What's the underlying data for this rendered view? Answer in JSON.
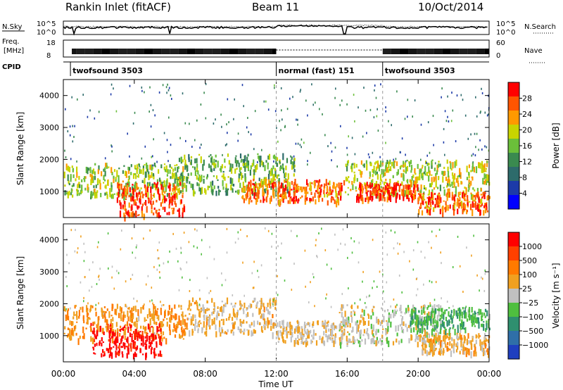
{
  "header": {
    "station": "Rankin Inlet (fitACF)",
    "beam": "Beam 11",
    "date": "10/Oct/2014"
  },
  "summary": {
    "nsky_label": "N.Sky",
    "nsky_ticks": [
      "10^5",
      "10^0"
    ],
    "nsearch_label": "N.Search",
    "nsearch_ticks": [
      "10^5",
      "10^0"
    ],
    "freq_label": "Freq.",
    "freq_unit": "[MHz]",
    "freq_ticks": [
      "18",
      "8"
    ],
    "nave_label": "Nave",
    "nave_ticks": [
      "60",
      "0"
    ],
    "cpid_label": "CPID",
    "cpid_segments": [
      {
        "label": "twofsound 3503",
        "start_hour": 0.4
      },
      {
        "label": "normal (fast) 151",
        "start_hour": 12.0
      },
      {
        "label": "twofsound 3503",
        "start_hour": 18.0
      }
    ]
  },
  "chart_data": [
    {
      "type": "heatmap",
      "panel": "power",
      "ylabel": "Slant Range [km]",
      "xlabel": "",
      "xlim_hours": [
        0,
        24
      ],
      "ylim_km": [
        180,
        4500
      ],
      "colorbar": {
        "label": "Power [dB]",
        "ticks": [
          "28",
          "24",
          "20",
          "16",
          "12",
          "8",
          "4"
        ],
        "range": [
          0,
          30
        ],
        "colors": [
          "#0000ff",
          "#1c3aa8",
          "#2d6b6b",
          "#3a8a4f",
          "#6bbf3a",
          "#c8d400",
          "#ff9900",
          "#ff5500",
          "#ff0000"
        ]
      },
      "bands": [
        {
          "t0": 0.0,
          "t1": 6.8,
          "r0": 900,
          "r1": 1900,
          "level": 16
        },
        {
          "t0": 3.0,
          "t1": 6.8,
          "r0": 250,
          "r1": 1300,
          "level": 26
        },
        {
          "t0": 6.5,
          "t1": 13.0,
          "r0": 1000,
          "r1": 2200,
          "level": 14
        },
        {
          "t0": 10.0,
          "t1": 15.8,
          "r0": 700,
          "r1": 1400,
          "level": 24
        },
        {
          "t0": 15.8,
          "t1": 24.0,
          "r0": 900,
          "r1": 2000,
          "level": 18
        },
        {
          "t0": 16.5,
          "t1": 20.0,
          "r0": 800,
          "r1": 1300,
          "level": 27
        },
        {
          "t0": 20.0,
          "t1": 24.0,
          "r0": 400,
          "r1": 1000,
          "level": 24
        }
      ]
    },
    {
      "type": "heatmap",
      "panel": "velocity",
      "ylabel": "Slant Range [km]",
      "xlabel": "Time UT",
      "xlim_hours": [
        0,
        24
      ],
      "ylim_km": [
        180,
        4500
      ],
      "xticks": [
        "00:00",
        "04:00",
        "08:00",
        "12:00",
        "16:00",
        "20:00",
        "00:00"
      ],
      "yticks": [
        "1000",
        "2000",
        "3000",
        "4000"
      ],
      "colorbar": {
        "label": "Velocity [m s⁻¹]",
        "ticks": [
          "1000",
          "500",
          "100",
          "25",
          "−25",
          "−100",
          "−500",
          "−1000"
        ],
        "range": [
          -1000,
          1000
        ],
        "colors": [
          "#1f3fbf",
          "#2f6fa8",
          "#2f8f6f",
          "#4fbf3f",
          "#c0c0c0",
          "#f0a020",
          "#ff7a00",
          "#ff4000",
          "#ff0000"
        ]
      },
      "bands": [
        {
          "t0": 0.0,
          "t1": 7.0,
          "r0": 900,
          "r1": 2000,
          "level": 300
        },
        {
          "t0": 1.5,
          "t1": 5.5,
          "r0": 400,
          "r1": 1400,
          "level": 900
        },
        {
          "t0": 7.0,
          "t1": 12.0,
          "r0": 1100,
          "r1": 2200,
          "level": 150
        },
        {
          "t0": 12.0,
          "t1": 16.0,
          "r0": 800,
          "r1": 1500,
          "level": 80
        },
        {
          "t0": 15.5,
          "t1": 21.5,
          "r0": 800,
          "r1": 2000,
          "level": 0
        },
        {
          "t0": 20.0,
          "t1": 24.0,
          "r0": 500,
          "r1": 1100,
          "level": 200
        },
        {
          "t0": 19.5,
          "t1": 24.0,
          "r0": 1200,
          "r1": 1900,
          "level": -300
        }
      ]
    }
  ]
}
